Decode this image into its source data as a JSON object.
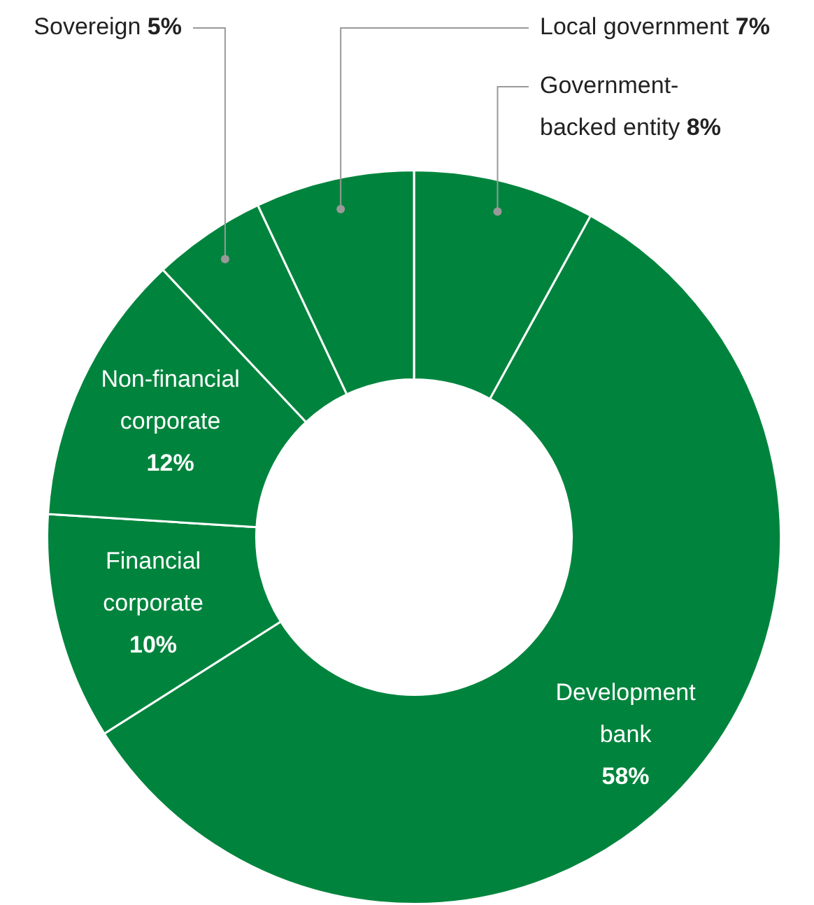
{
  "chart_data": {
    "type": "donut",
    "categories": [
      "Government-backed entity",
      "Development bank",
      "Financial corporate",
      "Non-financial corporate",
      "Sovereign",
      "Local government"
    ],
    "values": [
      8,
      58,
      10,
      12,
      5,
      7
    ],
    "colors": [
      "#00843d",
      "#00843d",
      "#00843d",
      "#00843d",
      "#00843d",
      "#00843d"
    ],
    "value_labels": [
      "8%",
      "58%",
      "10%",
      "12%",
      "5%",
      "7%"
    ],
    "legend": false
  }
}
